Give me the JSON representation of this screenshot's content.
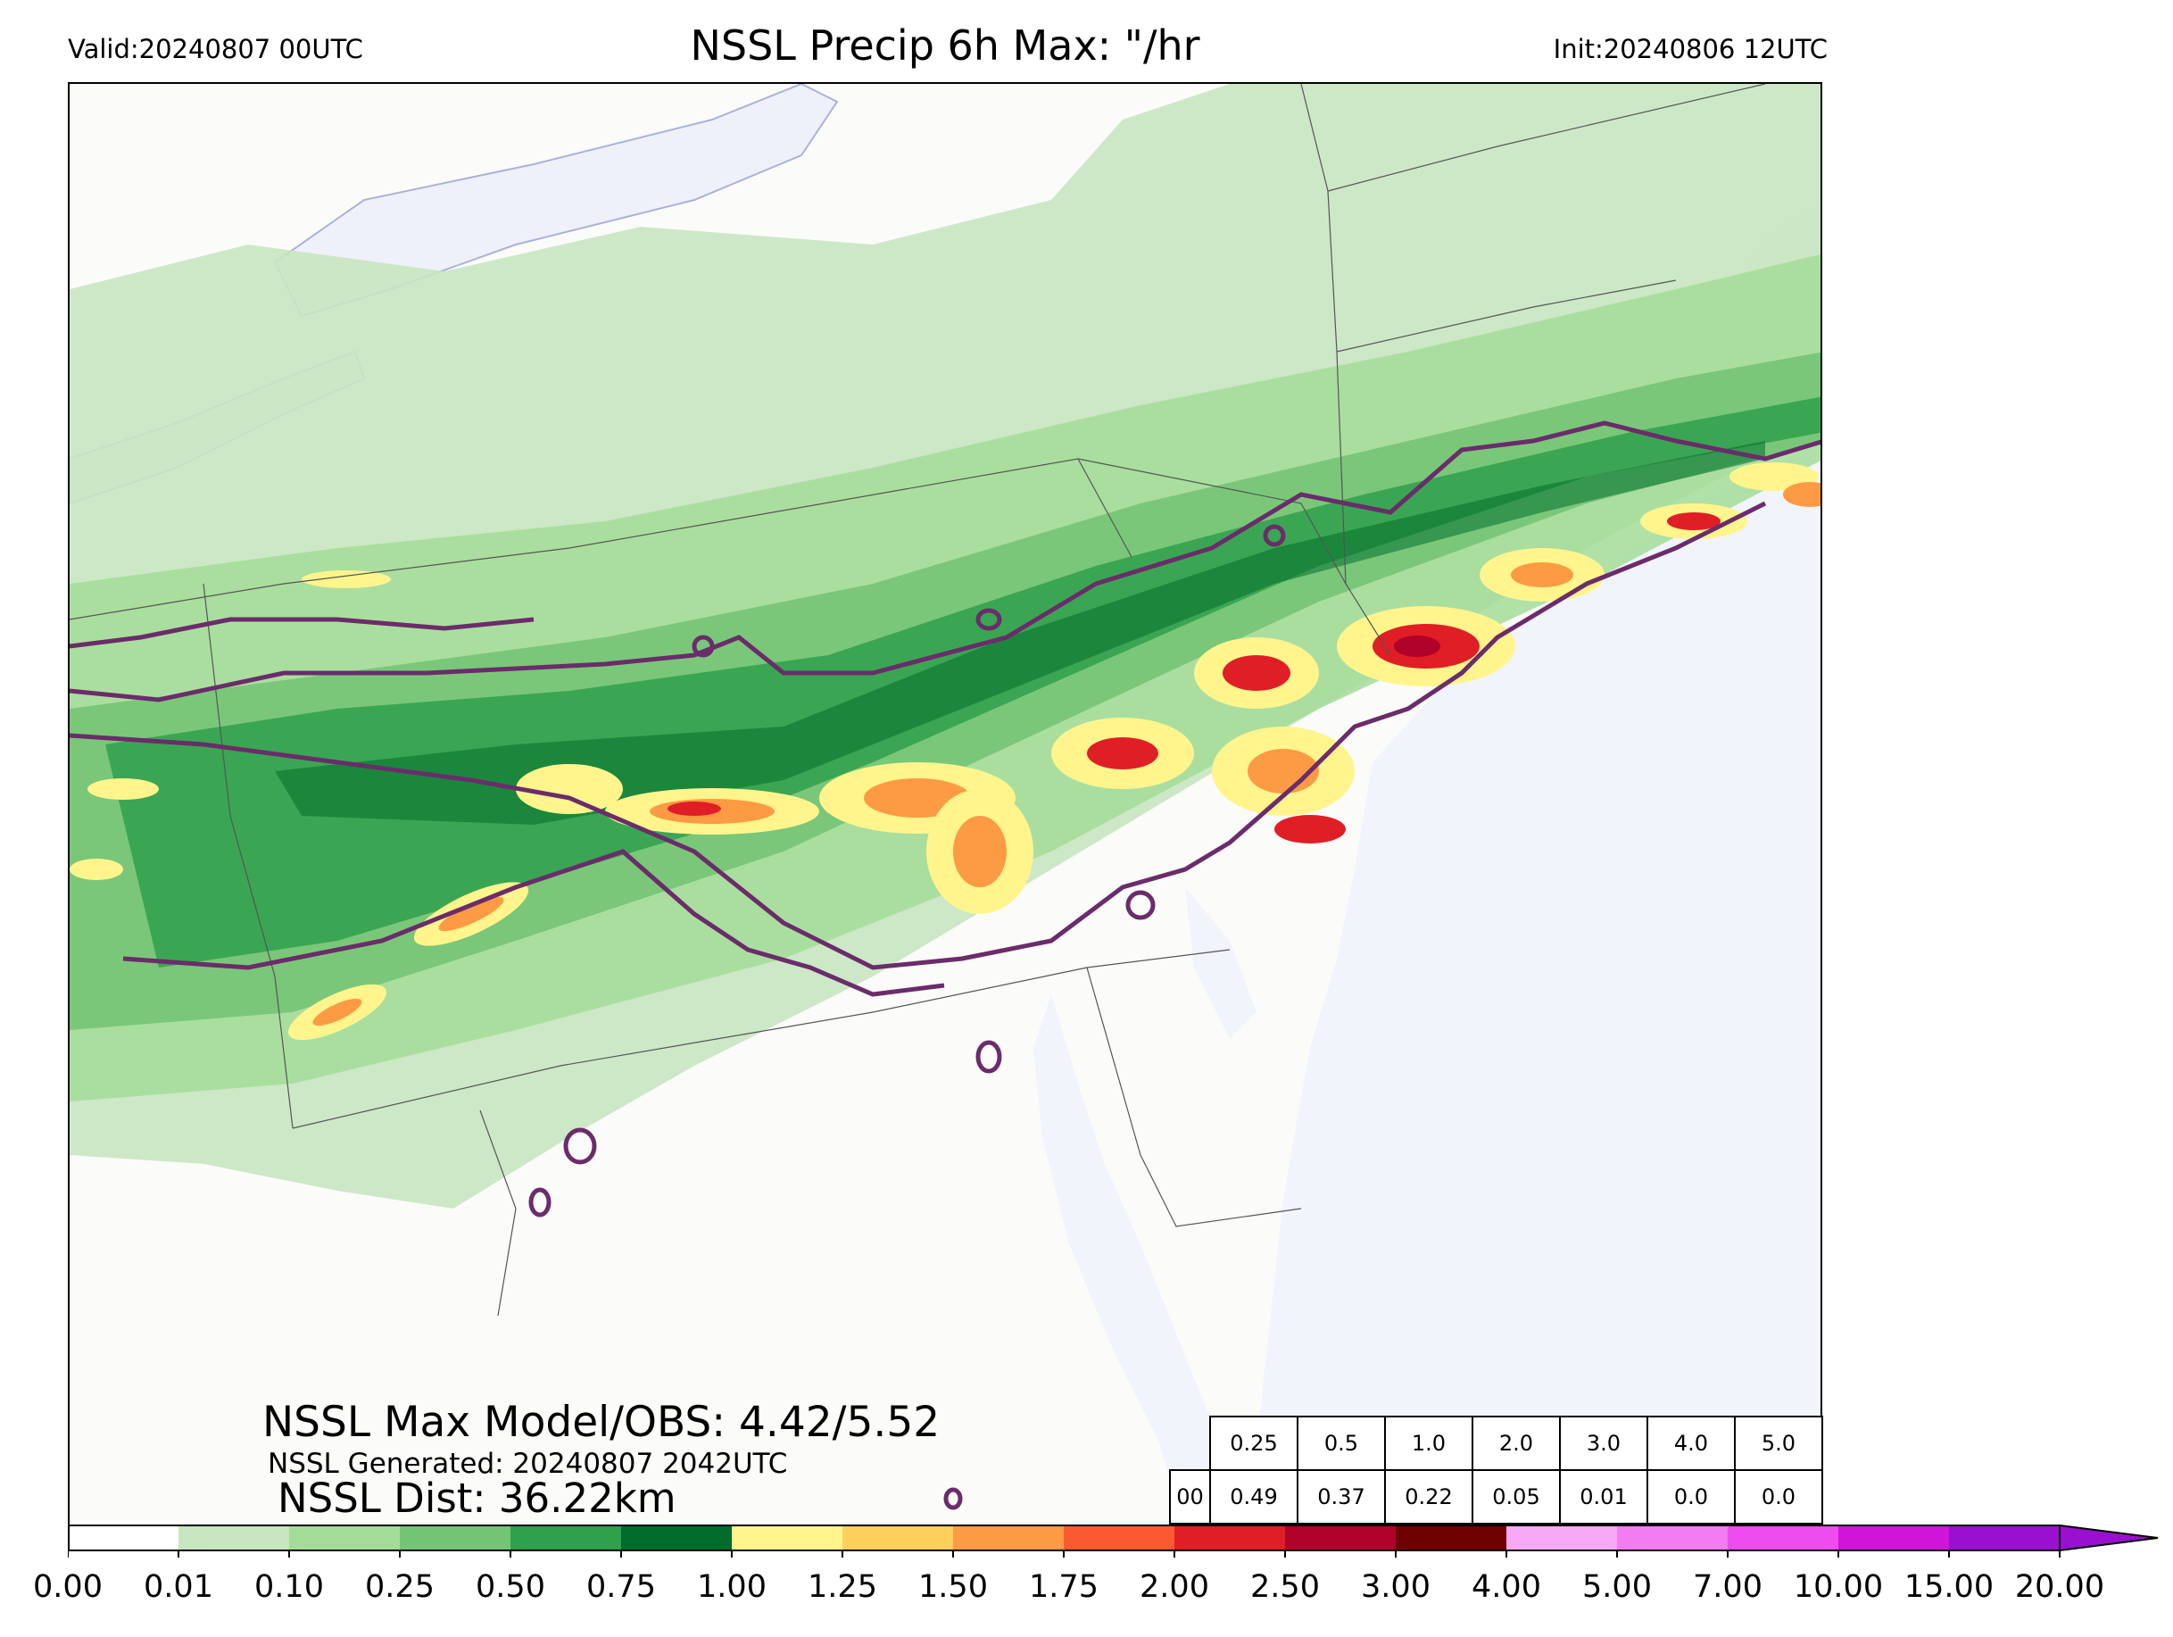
{
  "header": {
    "valid": "Valid:20240807 00UTC",
    "title": "NSSL Precip 6h Max: \"/hr",
    "init": "Init:20240806 12UTC"
  },
  "stats": {
    "max_line": "NSSL Max Model/OBS: 4.42/5.52",
    "generated_line": "NSSL Generated: 20240807 2042UTC",
    "dist_line": "NSSL Dist: 36.22km"
  },
  "threshold_table": {
    "thresholds": [
      "0.25",
      "0.5",
      "1.0",
      "2.0",
      "3.0",
      "4.0",
      "5.0"
    ],
    "row_label": "00",
    "values": [
      "0.49",
      "0.37",
      "0.22",
      "0.05",
      "0.01",
      "0.0",
      "0.0"
    ]
  },
  "colorbar": {
    "ticks": [
      "0.00",
      "0.01",
      "0.10",
      "0.25",
      "0.50",
      "0.75",
      "1.00",
      "1.25",
      "1.50",
      "1.75",
      "2.00",
      "2.50",
      "3.00",
      "4.00",
      "5.00",
      "7.00",
      "10.00",
      "15.00",
      "20.00"
    ],
    "colors": [
      "#ffffff",
      "#c8e6c0",
      "#a3dc98",
      "#74c476",
      "#2fa04c",
      "#006d2c",
      "#fff58c",
      "#fdd05c",
      "#fd9a44",
      "#fb5a30",
      "#e01e26",
      "#b0022a",
      "#6e0000",
      "#f7a8f5",
      "#f27cf0",
      "#ee4cee",
      "#d014d8",
      "#9a10d0"
    ]
  },
  "map_colors": {
    "land": "#fbfbfa",
    "water": "#f1f4fb",
    "precip_light": "#c8e6c0",
    "precip_low": "#a3dc98",
    "precip_mid": "#74c476",
    "precip_heavy": "#2fa04c",
    "precip_dark": "#006d2c",
    "hot_yellow": "#fff58c",
    "hot_orange": "#fd9a44",
    "hot_red": "#e01e26",
    "hot_maroon": "#b0022a",
    "obs_contour": "#6b2c6b",
    "borders": "#555555"
  }
}
